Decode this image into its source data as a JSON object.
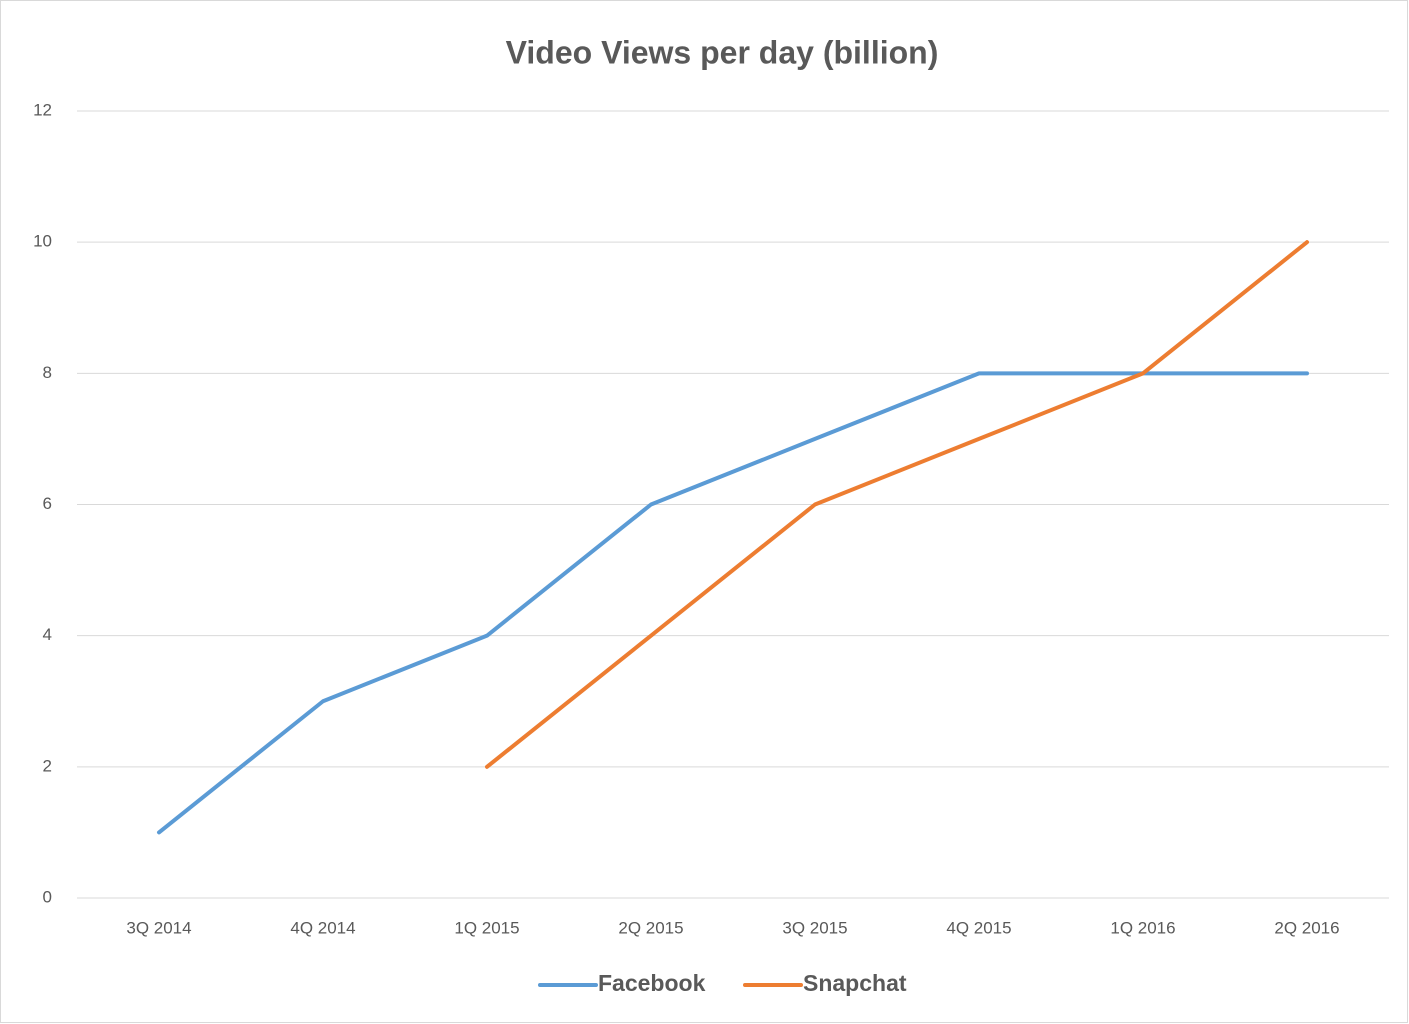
{
  "chart_data": {
    "type": "line",
    "title": "Video Views per day (billion)",
    "categories": [
      "3Q 2014",
      "4Q 2014",
      "1Q 2015",
      "2Q 2015",
      "3Q 2015",
      "4Q 2015",
      "1Q 2016",
      "2Q 2016"
    ],
    "series": [
      {
        "name": "Facebook",
        "color": "#5b9bd5",
        "values": [
          1,
          3,
          4,
          6,
          7,
          8,
          8,
          8
        ]
      },
      {
        "name": "Snapchat",
        "color": "#ed7d31",
        "values": [
          null,
          null,
          2,
          4,
          6,
          7,
          8,
          10
        ]
      }
    ],
    "ylim": [
      0,
      12
    ],
    "yticks": [
      0,
      2,
      4,
      6,
      8,
      10,
      12
    ],
    "grid": true,
    "legend": "bottom"
  }
}
